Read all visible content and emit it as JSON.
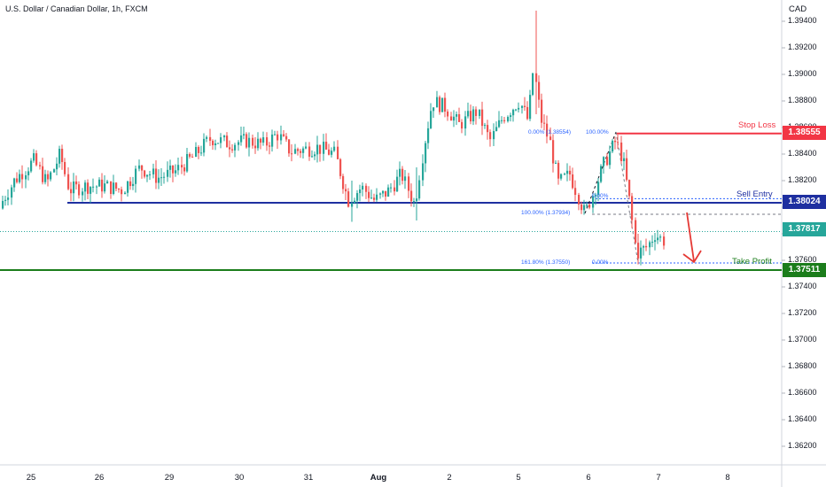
{
  "header": {
    "symbol_title": "U.S. Dollar / Canadian Dollar, 1h, FXCM",
    "currency": "CAD"
  },
  "price_axis": {
    "labels": [
      "1.39400",
      "1.39200",
      "1.39000",
      "1.38800",
      "1.38600",
      "1.38400",
      "1.38200",
      "1.38000",
      "1.37800",
      "1.37600",
      "1.37400",
      "1.37200",
      "1.37000",
      "1.36800",
      "1.36600",
      "1.36400",
      "1.36200"
    ],
    "values": [
      1.394,
      1.392,
      1.39,
      1.388,
      1.386,
      1.384,
      1.382,
      1.38,
      1.378,
      1.376,
      1.374,
      1.372,
      1.37,
      1.368,
      1.366,
      1.364,
      1.362
    ]
  },
  "time_axis": {
    "labels": [
      "25",
      "26",
      "29",
      "30",
      "31",
      "Aug",
      "2",
      "5",
      "6",
      "7",
      "8"
    ],
    "bold_index": 5
  },
  "levels": {
    "stop_loss": {
      "label": "Stop Loss",
      "price": "1.38555",
      "color": "#f23645"
    },
    "sell_entry": {
      "label": "Sell Entry",
      "price": "1.38024",
      "color": "#1e2fa0"
    },
    "current": {
      "price": "1.37817",
      "color": "#26a69a"
    },
    "take_profit": {
      "label": "Take Profit",
      "price": "1.37511",
      "color": "#1b7d1b"
    }
  },
  "fib_labels": {
    "f1": "0.00% (1.38554)",
    "f2": "100.00%",
    "f3": "0.00%",
    "f4": "100.00% (1.37934)",
    "f5": "161.80% (1.37550)",
    "f6": "0.00%"
  },
  "chart_data": {
    "type": "candlestick",
    "title": "U.S. Dollar / Canadian Dollar, 1h, FXCM",
    "ylim": [
      1.361,
      1.395
    ],
    "horizontal_lines": [
      1.38555,
      1.38024,
      1.37817,
      1.37511
    ],
    "anchors": [
      [
        0,
        1.3799
      ],
      [
        18,
        1.382
      ],
      [
        40,
        1.3835
      ],
      [
        55,
        1.3818
      ],
      [
        70,
        1.384
      ],
      [
        80,
        1.3813
      ],
      [
        100,
        1.3816
      ],
      [
        120,
        1.3816
      ],
      [
        140,
        1.3813
      ],
      [
        160,
        1.383
      ],
      [
        180,
        1.3822
      ],
      [
        200,
        1.3827
      ],
      [
        220,
        1.3838
      ],
      [
        240,
        1.3852
      ],
      [
        260,
        1.3848
      ],
      [
        280,
        1.385
      ],
      [
        300,
        1.3847
      ],
      [
        315,
        1.3855
      ],
      [
        330,
        1.3842
      ],
      [
        360,
        1.3845
      ],
      [
        380,
        1.384
      ],
      [
        395,
        1.3805
      ],
      [
        410,
        1.3815
      ],
      [
        425,
        1.3805
      ],
      [
        440,
        1.3812
      ],
      [
        455,
        1.3825
      ],
      [
        470,
        1.3802
      ],
      [
        480,
        1.3845
      ],
      [
        490,
        1.388
      ],
      [
        505,
        1.3875
      ],
      [
        520,
        1.3862
      ],
      [
        540,
        1.3872
      ],
      [
        555,
        1.385
      ],
      [
        570,
        1.3868
      ],
      [
        588,
        1.388
      ],
      [
        598,
        1.3865
      ],
      [
        604,
        1.3905
      ],
      [
        612,
        1.3867
      ],
      [
        622,
        1.385
      ],
      [
        632,
        1.3818
      ],
      [
        645,
        1.3825
      ],
      [
        662,
        1.3795
      ],
      [
        672,
        1.3812
      ],
      [
        685,
        1.3835
      ],
      [
        697,
        1.385
      ],
      [
        705,
        1.3835
      ],
      [
        713,
        1.3802
      ],
      [
        720,
        1.3765
      ],
      [
        732,
        1.377
      ],
      [
        741,
        1.378
      ],
      [
        750,
        1.3775
      ]
    ]
  }
}
